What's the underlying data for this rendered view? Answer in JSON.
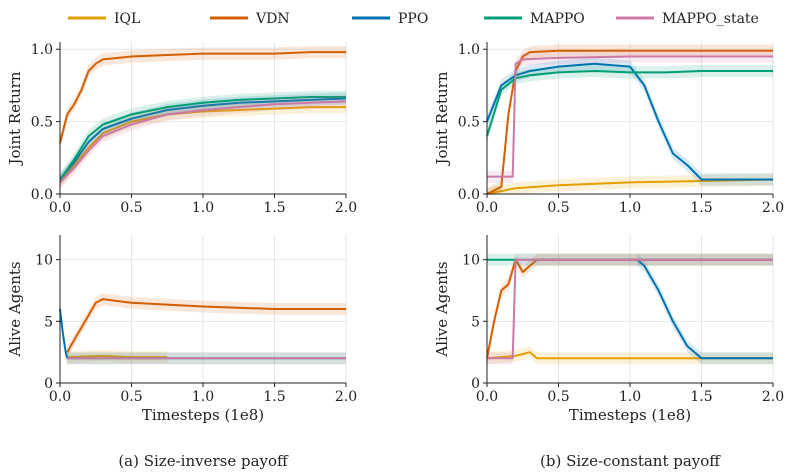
{
  "legend": [
    {
      "name": "IQL",
      "color": "#E69F00"
    },
    {
      "name": "VDN",
      "color": "#D55E00"
    },
    {
      "name": "PPO",
      "color": "#0072B2"
    },
    {
      "name": "MAPPO",
      "color": "#009E73"
    },
    {
      "name": "MAPPO_state",
      "color": "#CC79A7"
    }
  ],
  "chart_data": [
    {
      "id": "a-top",
      "type": "line",
      "panel": "(a)",
      "title": "",
      "xlabel": "",
      "ylabel": "Joint Return",
      "xlim": [
        0,
        2.0
      ],
      "ylim": [
        0,
        1.05
      ],
      "xticks": [
        "0.0",
        "0.5",
        "1.0",
        "1.5",
        "2.0"
      ],
      "yticks": [
        "0.0",
        "0.5",
        "1.0"
      ],
      "ytick_values": [
        0,
        0.5,
        1.0
      ],
      "series": [
        {
          "name": "IQL",
          "x": [
            0,
            0.1,
            0.2,
            0.3,
            0.5,
            0.75,
            1.0,
            1.25,
            1.5,
            1.75,
            2.0
          ],
          "y": [
            0.08,
            0.2,
            0.32,
            0.42,
            0.5,
            0.55,
            0.57,
            0.58,
            0.59,
            0.6,
            0.6
          ]
        },
        {
          "name": "VDN",
          "x": [
            0,
            0.05,
            0.1,
            0.15,
            0.2,
            0.25,
            0.3,
            0.5,
            0.75,
            1.0,
            1.25,
            1.5,
            1.75,
            2.0
          ],
          "y": [
            0.35,
            0.55,
            0.62,
            0.72,
            0.85,
            0.9,
            0.93,
            0.95,
            0.96,
            0.97,
            0.97,
            0.97,
            0.98,
            0.98
          ]
        },
        {
          "name": "PPO",
          "x": [
            0,
            0.1,
            0.2,
            0.3,
            0.5,
            0.75,
            1.0,
            1.25,
            1.5,
            1.75,
            2.0
          ],
          "y": [
            0.1,
            0.22,
            0.36,
            0.45,
            0.52,
            0.58,
            0.61,
            0.63,
            0.64,
            0.65,
            0.66
          ]
        },
        {
          "name": "MAPPO",
          "x": [
            0,
            0.1,
            0.2,
            0.3,
            0.5,
            0.75,
            1.0,
            1.25,
            1.5,
            1.75,
            2.0
          ],
          "y": [
            0.1,
            0.24,
            0.4,
            0.48,
            0.55,
            0.6,
            0.63,
            0.65,
            0.66,
            0.67,
            0.67
          ]
        },
        {
          "name": "MAPPO_state",
          "x": [
            0,
            0.1,
            0.2,
            0.3,
            0.5,
            0.75,
            1.0,
            1.25,
            1.5,
            1.75,
            2.0
          ],
          "y": [
            0.08,
            0.18,
            0.3,
            0.4,
            0.48,
            0.55,
            0.58,
            0.6,
            0.62,
            0.63,
            0.64
          ]
        }
      ]
    },
    {
      "id": "b-top",
      "type": "line",
      "panel": "(b)",
      "title": "",
      "xlabel": "",
      "ylabel": "Joint Return",
      "xlim": [
        0,
        2.0
      ],
      "ylim": [
        0,
        1.05
      ],
      "xticks": [
        "0.0",
        "0.5",
        "1.0",
        "1.5",
        "2.0"
      ],
      "yticks": [
        "0.0",
        "0.5",
        "1.0"
      ],
      "ytick_values": [
        0,
        0.5,
        1.0
      ],
      "series": [
        {
          "name": "IQL",
          "x": [
            0,
            0.1,
            0.2,
            0.5,
            1.0,
            1.5,
            2.0
          ],
          "y": [
            0.0,
            0.02,
            0.04,
            0.06,
            0.08,
            0.09,
            0.1
          ]
        },
        {
          "name": "VDN",
          "x": [
            0,
            0.1,
            0.15,
            0.2,
            0.25,
            0.3,
            0.5,
            1.0,
            1.5,
            2.0
          ],
          "y": [
            0.0,
            0.05,
            0.55,
            0.85,
            0.95,
            0.98,
            0.99,
            0.99,
            0.99,
            0.99
          ]
        },
        {
          "name": "PPO",
          "x": [
            0,
            0.1,
            0.2,
            0.3,
            0.5,
            0.75,
            1.0,
            1.1,
            1.2,
            1.3,
            1.4,
            1.5,
            1.75,
            2.0
          ],
          "y": [
            0.5,
            0.75,
            0.82,
            0.85,
            0.88,
            0.9,
            0.88,
            0.75,
            0.5,
            0.28,
            0.2,
            0.1,
            0.1,
            0.1
          ]
        },
        {
          "name": "MAPPO",
          "x": [
            0,
            0.1,
            0.2,
            0.3,
            0.5,
            0.75,
            1.0,
            1.25,
            1.5,
            1.75,
            2.0
          ],
          "y": [
            0.4,
            0.72,
            0.8,
            0.82,
            0.84,
            0.85,
            0.84,
            0.84,
            0.85,
            0.85,
            0.85
          ]
        },
        {
          "name": "MAPPO_state",
          "x": [
            0,
            0.1,
            0.18,
            0.2,
            0.25,
            0.5,
            1.0,
            1.5,
            2.0
          ],
          "y": [
            0.12,
            0.12,
            0.12,
            0.9,
            0.93,
            0.94,
            0.95,
            0.95,
            0.95
          ]
        }
      ]
    },
    {
      "id": "a-bottom",
      "type": "line",
      "panel": "(a)",
      "title": "",
      "xlabel": "Timesteps (1e8)",
      "ylabel": "Alive Agents",
      "xlim": [
        0,
        2.0
      ],
      "ylim": [
        0,
        12
      ],
      "xticks": [
        "0.0",
        "0.5",
        "1.0",
        "1.5",
        "2.0"
      ],
      "yticks": [
        "0",
        "5",
        "10"
      ],
      "ytick_values": [
        0,
        5,
        10
      ],
      "series": [
        {
          "name": "IQL",
          "x": [
            0.05,
            0.3,
            0.5,
            0.75
          ],
          "y": [
            2.1,
            2.2,
            2.1,
            2.1
          ]
        },
        {
          "name": "VDN",
          "x": [
            0.05,
            0.1,
            0.15,
            0.2,
            0.25,
            0.3,
            0.5,
            1.0,
            1.5,
            2.0
          ],
          "y": [
            2.5,
            3.5,
            4.5,
            5.5,
            6.5,
            6.8,
            6.5,
            6.2,
            6.0,
            6.0
          ]
        },
        {
          "name": "PPO",
          "x": [
            0,
            0.02,
            0.04,
            0.05
          ],
          "y": [
            6.0,
            4.0,
            2.5,
            2.0
          ]
        },
        {
          "name": "MAPPO",
          "x": [
            0.05,
            2.0
          ],
          "y": [
            2.0,
            2.0
          ]
        },
        {
          "name": "MAPPO_state",
          "x": [
            0.05,
            2.0
          ],
          "y": [
            2.0,
            2.0
          ]
        }
      ]
    },
    {
      "id": "b-bottom",
      "type": "line",
      "panel": "(b)",
      "title": "",
      "xlabel": "Timesteps (1e8)",
      "ylabel": "Alive Agents",
      "xlim": [
        0,
        2.0
      ],
      "ylim": [
        0,
        12
      ],
      "xticks": [
        "0.0",
        "0.5",
        "1.0",
        "1.5",
        "2.0"
      ],
      "yticks": [
        "0",
        "5",
        "10"
      ],
      "ytick_values": [
        0,
        5,
        10
      ],
      "series": [
        {
          "name": "IQL",
          "x": [
            0,
            0.2,
            0.3,
            0.35,
            0.5,
            1.0,
            1.5,
            2.0
          ],
          "y": [
            2.0,
            2.2,
            2.5,
            2.0,
            2.0,
            2.0,
            2.0,
            2.0
          ]
        },
        {
          "name": "VDN",
          "x": [
            0,
            0.05,
            0.1,
            0.15,
            0.2,
            0.25,
            0.3,
            0.35,
            0.5,
            1.0,
            2.0
          ],
          "y": [
            2.0,
            5.0,
            7.5,
            8.0,
            10.0,
            9.0,
            9.5,
            10.0,
            10.0,
            10.0,
            10.0
          ]
        },
        {
          "name": "PPO",
          "x": [
            1.05,
            1.1,
            1.2,
            1.3,
            1.4,
            1.5,
            1.75,
            2.0
          ],
          "y": [
            10.0,
            9.5,
            7.5,
            5.0,
            3.0,
            2.0,
            2.0,
            2.0
          ]
        },
        {
          "name": "MAPPO",
          "x": [
            0,
            0.15,
            2.0
          ],
          "y": [
            10.0,
            10.0,
            10.0
          ]
        },
        {
          "name": "MAPPO_state",
          "x": [
            0,
            0.18,
            0.2,
            0.3,
            2.0
          ],
          "y": [
            2.0,
            2.0,
            10.0,
            10.0,
            10.0
          ]
        }
      ]
    }
  ],
  "captions": {
    "a": "(a) Size-inverse payoff",
    "b": "(b) Size-constant payoff"
  }
}
